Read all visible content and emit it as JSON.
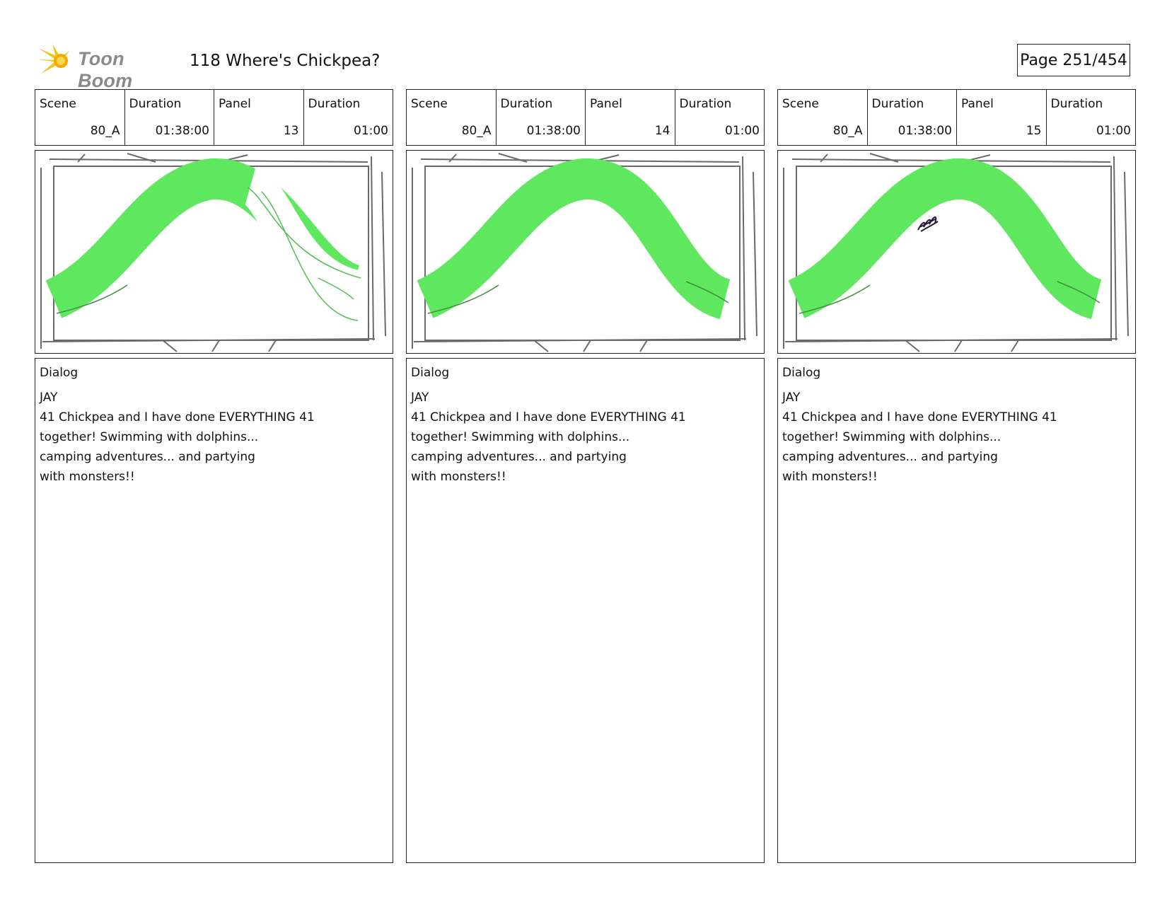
{
  "header": {
    "logo_text": "Toon Boom",
    "title": "118 Where's Chickpea?",
    "page": "Page 251/454"
  },
  "labels": {
    "scene": "Scene",
    "duration": "Duration",
    "panel": "Panel",
    "dialog": "Dialog"
  },
  "panels": [
    {
      "scene": "80_A",
      "scene_duration": "01:38:00",
      "panel": "13",
      "panel_duration": "01:00",
      "speaker": "JAY",
      "lines": [
        "41 Chickpea and I have done EVERYTHING 41",
        "together! Swimming with dolphins...",
        "camping adventures... and partying",
        "with monsters!!"
      ]
    },
    {
      "scene": "80_A",
      "scene_duration": "01:38:00",
      "panel": "14",
      "panel_duration": "01:00",
      "speaker": "JAY",
      "lines": [
        "41 Chickpea and I have done EVERYTHING 41",
        "together! Swimming with dolphins...",
        "camping adventures... and partying",
        "with monsters!!"
      ]
    },
    {
      "scene": "80_A",
      "scene_duration": "01:38:00",
      "panel": "15",
      "panel_duration": "01:00",
      "speaker": "JAY",
      "lines": [
        "41 Chickpea and I have done EVERYTHING 41",
        "together! Swimming with dolphins...",
        "camping adventures... and partying",
        "with monsters!!"
      ]
    }
  ],
  "colors": {
    "sketch_green": "#5fe85f",
    "sketch_outline": "#6a6a6a"
  }
}
